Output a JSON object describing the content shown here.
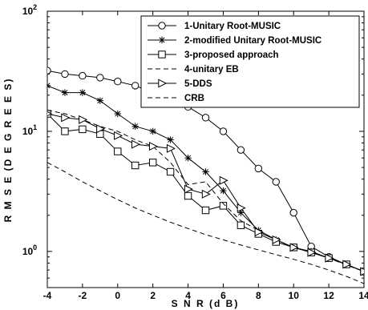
{
  "chart_data": {
    "type": "line",
    "xlabel": "S N R (d B)",
    "ylabel": "R M S E (D E G R E E S)",
    "xlim": [
      -4,
      14
    ],
    "ylim": [
      0.5,
      100
    ],
    "yscale": "log",
    "grid": false,
    "legend_position": "top-right",
    "x_ticks": [
      "-4",
      "-2",
      "0",
      "2",
      "4",
      "6",
      "8",
      "10",
      "12",
      "14"
    ],
    "y_ticks": [
      {
        "value": 1,
        "base": "10",
        "exp": "0"
      },
      {
        "value": 10,
        "base": "10",
        "exp": "1"
      },
      {
        "value": 100,
        "base": "10",
        "exp": "2"
      }
    ],
    "x": [
      -4,
      -3,
      -2,
      -1,
      0,
      1,
      2,
      3,
      4,
      5,
      6,
      7,
      8,
      9,
      10,
      11,
      12,
      13,
      14
    ],
    "series": [
      {
        "name": "1-Unitary Root-MUSIC",
        "marker": "circle",
        "dash": "solid",
        "values": [
          32,
          30,
          29,
          28,
          26,
          24,
          21,
          19,
          16,
          13,
          10,
          7,
          4.9,
          3.8,
          2.1,
          1.1,
          0.9,
          0.78,
          0.68
        ]
      },
      {
        "name": "2-modified Unitary Root-MUSIC",
        "marker": "star",
        "dash": "solid",
        "values": [
          24,
          21,
          21,
          18,
          14,
          11,
          10,
          8.5,
          6,
          4.6,
          3.2,
          2.1,
          1.5,
          1.25,
          1.08,
          1.0,
          0.88,
          0.78,
          0.68
        ]
      },
      {
        "name": "3-proposed approach",
        "marker": "square",
        "dash": "solid",
        "values": [
          14,
          10,
          10.4,
          9.5,
          6.8,
          5.2,
          5.5,
          4.6,
          2.9,
          2.2,
          2.4,
          1.65,
          1.4,
          1.2,
          1.08,
          0.98,
          0.88,
          0.78,
          0.68
        ]
      },
      {
        "name": "4-unitary EB",
        "marker": "none",
        "dash": "dash",
        "values": [
          15,
          14,
          12.5,
          11,
          10,
          8.5,
          7.5,
          5.5,
          3.6,
          3.8,
          2.5,
          1.8,
          1.5,
          1.25,
          1.08,
          0.98,
          0.88,
          0.77,
          0.68
        ]
      },
      {
        "name": "5-DDS",
        "marker": "triangle",
        "dash": "solid",
        "values": [
          14,
          13,
          12.5,
          10.5,
          9.2,
          7.8,
          7.5,
          7.2,
          3.3,
          3.0,
          3.9,
          2.3,
          1.45,
          1.25,
          1.08,
          0.98,
          0.88,
          0.78,
          0.68
        ]
      },
      {
        "name": "CRB",
        "marker": "none",
        "dash": "dash",
        "values": [
          5.5,
          4.6,
          3.8,
          3.2,
          2.7,
          2.3,
          2.0,
          1.75,
          1.55,
          1.38,
          1.25,
          1.13,
          1.03,
          0.94,
          0.86,
          0.78,
          0.7,
          0.62,
          0.54
        ]
      }
    ]
  }
}
